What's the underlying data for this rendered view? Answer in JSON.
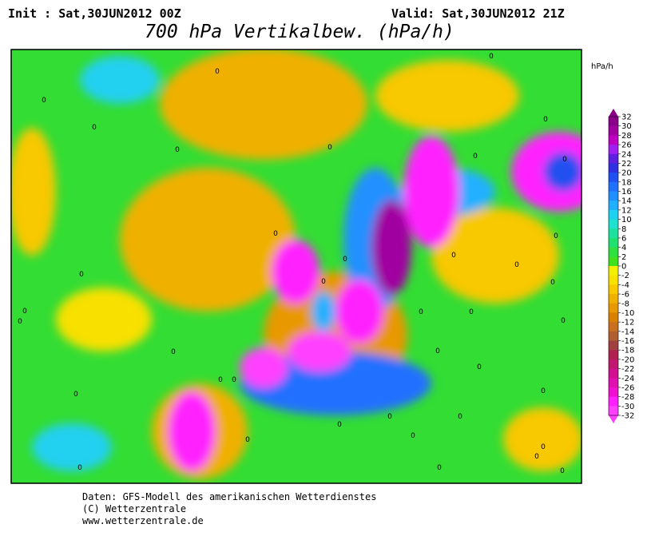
{
  "header": {
    "init": "Init : Sat,30JUN2012 00Z",
    "valid": "Valid: Sat,30JUN2012 21Z",
    "title": "700 hPa Vertikalbew. (hPa/h)"
  },
  "colorbar": {
    "unit": "hPa/h",
    "ticks": [
      32,
      30,
      28,
      26,
      24,
      22,
      20,
      18,
      16,
      14,
      12,
      10,
      8,
      6,
      4,
      2,
      0,
      -2,
      -4,
      -6,
      -8,
      -10,
      -12,
      -14,
      -16,
      -18,
      -20,
      -22,
      -24,
      -26,
      -28,
      -30,
      -32
    ],
    "colors": [
      "#8b008b",
      "#a000a0",
      "#c000c0",
      "#a020f0",
      "#6020e0",
      "#3030e0",
      "#2050f0",
      "#2070ff",
      "#2090ff",
      "#20b0ff",
      "#20d0f0",
      "#20e0d0",
      "#20e0a0",
      "#20e070",
      "#30e040",
      "#40e020",
      "#f0f000",
      "#f8e000",
      "#f8c800",
      "#f0b000",
      "#e89800",
      "#d88000",
      "#c87020",
      "#b06030",
      "#a04040",
      "#b02050",
      "#c01870",
      "#d01090",
      "#e010b0",
      "#f010d0",
      "#ff20ff",
      "#ff40ff"
    ]
  },
  "map": {
    "contour_label": "0"
  },
  "footer": {
    "lines": [
      "Daten: GFS-Modell des amerikanischen Wetterdienstes",
      "(C) Wetterzentrale",
      "www.wetterzentrale.de"
    ]
  }
}
